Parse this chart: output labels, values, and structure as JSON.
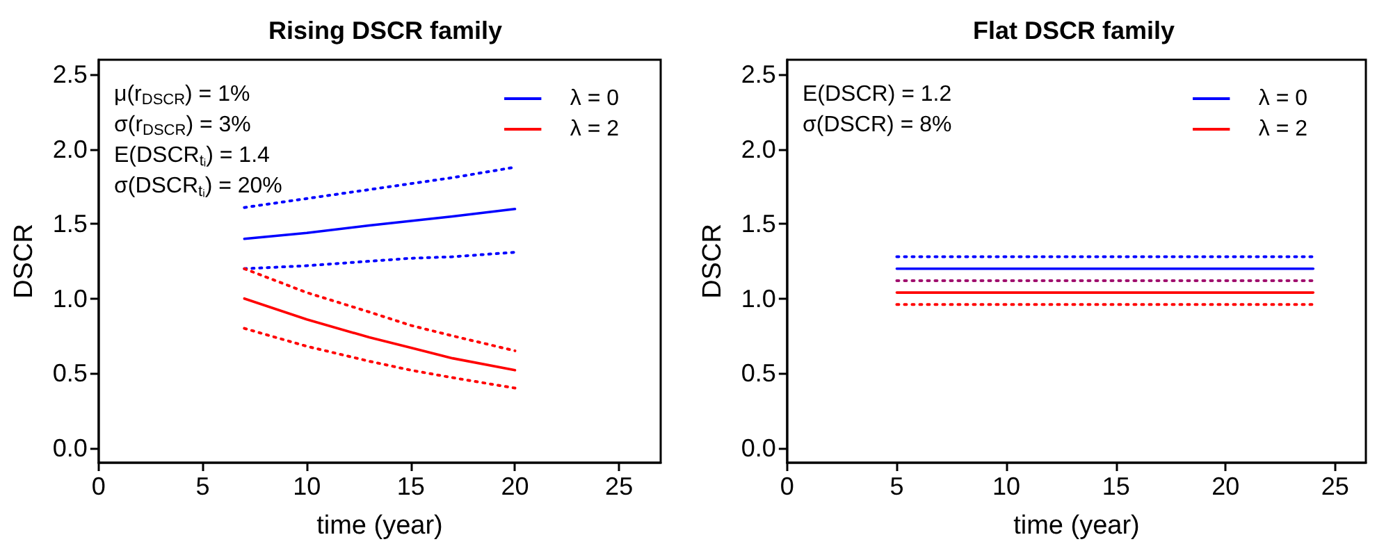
{
  "chart_data": [
    {
      "type": "line",
      "title": "Rising DSCR family",
      "xlabel": "time (year)",
      "ylabel": "DSCR",
      "annotations": [
        "μ(r$_{DSCR}$) = 1%",
        "σ(r$_{DSCR}$) = 3%",
        "E(DSCR$_{tᵢ}$) = 1.4",
        "σ(DSCR$_{tᵢ}$) = 20%"
      ],
      "x": [
        7,
        10,
        13,
        15,
        17,
        20
      ],
      "series": [
        {
          "name": "λ = 0",
          "color": "#0000ff",
          "values": [
            1.4,
            1.44,
            1.49,
            1.52,
            1.55,
            1.6
          ]
        },
        {
          "name": "λ = 2",
          "color": "#ff0000",
          "values": [
            1.0,
            0.86,
            0.74,
            0.67,
            0.6,
            0.52
          ]
        },
        {
          "color": "#0000ff",
          "line_style": "dotted",
          "values": [
            1.61,
            1.67,
            1.73,
            1.77,
            1.81,
            1.88
          ]
        },
        {
          "color": "#0000ff",
          "line_style": "dotted",
          "values": [
            1.2,
            1.22,
            1.25,
            1.27,
            1.28,
            1.31
          ]
        },
        {
          "color": "#ff0000",
          "line_style": "dotted",
          "values": [
            1.2,
            1.04,
            0.91,
            0.82,
            0.75,
            0.65
          ]
        },
        {
          "color": "#ff0000",
          "line_style": "dotted",
          "values": [
            0.8,
            0.68,
            0.58,
            0.52,
            0.47,
            0.4
          ]
        }
      ],
      "xlim": [
        0,
        27
      ],
      "xticks": [
        0,
        5,
        10,
        15,
        20,
        25
      ],
      "ylim": [
        -0.1,
        2.6
      ],
      "yticks": [
        {
          "value": 0,
          "label": "0.0"
        },
        0.5,
        {
          "value": 1,
          "label": "1.0"
        },
        1.5,
        {
          "value": 2,
          "label": "2.0"
        },
        2.5
      ],
      "grid": false,
      "legend": "top right",
      "line_style": "solid"
    },
    {
      "type": "line",
      "title": "Flat DSCR family",
      "xlabel": "time (year)",
      "ylabel": "DSCR",
      "annotations": [
        "E(DSCR) = 1.2",
        "σ(DSCR) = 8%"
      ],
      "x": [
        5,
        24
      ],
      "series": [
        {
          "name": "λ = 0",
          "color": "#0000ff",
          "values": [
            1.2,
            1.2
          ]
        },
        {
          "name": "λ = 2",
          "color": "#ff0000",
          "values": [
            1.04,
            1.04
          ]
        },
        {
          "color": "#0000ff",
          "line_style": "dotted",
          "values": [
            1.28,
            1.28
          ]
        },
        {
          "color": "#a0106e",
          "line_style": "dotted",
          "values": [
            1.12,
            1.12
          ]
        },
        {
          "color": "#ff0000",
          "line_style": "dotted",
          "values": [
            0.96,
            0.96
          ]
        }
      ],
      "xlim": [
        0,
        26.4
      ],
      "xticks": [
        0,
        5,
        10,
        15,
        20,
        25
      ],
      "ylim": [
        -0.1,
        2.6
      ],
      "yticks": [
        {
          "value": 0,
          "label": "0.0"
        },
        0.5,
        {
          "value": 1,
          "label": "1.0"
        },
        1.5,
        {
          "value": 2,
          "label": "2.0"
        },
        2.5
      ],
      "grid": false,
      "legend": "top right",
      "line_style": "solid"
    }
  ]
}
